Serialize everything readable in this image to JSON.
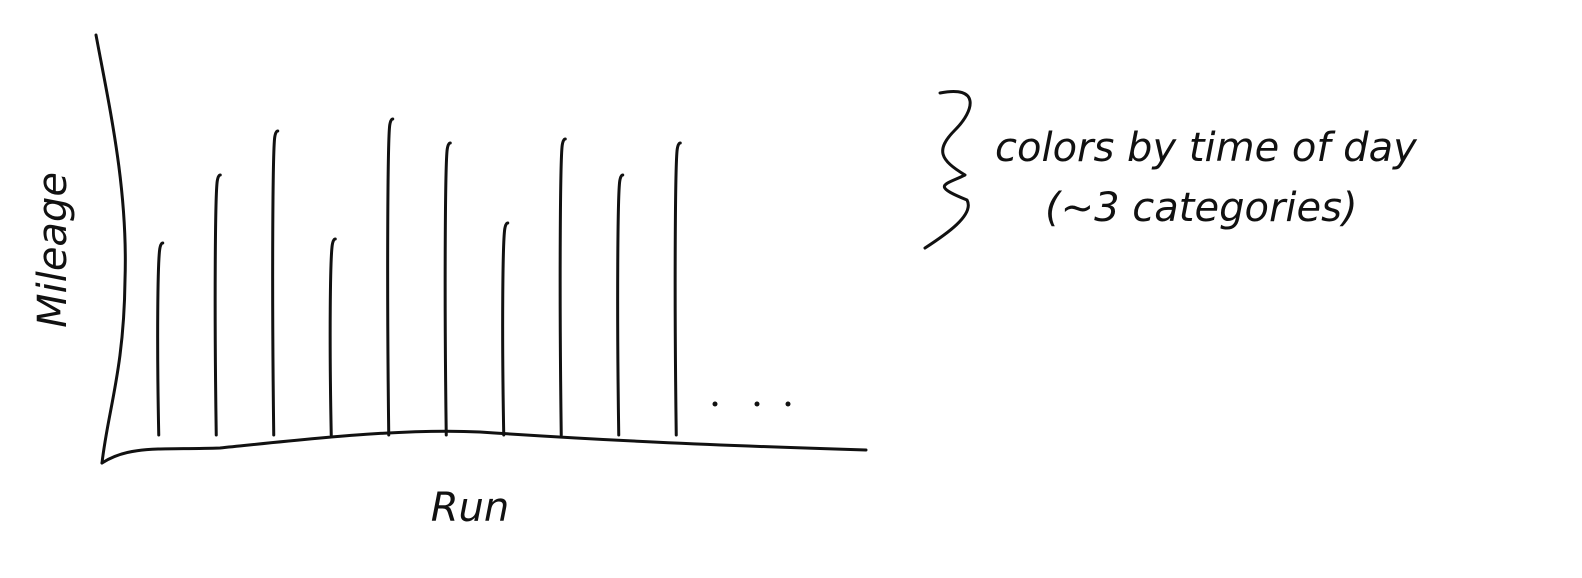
{
  "chart_data": {
    "type": "bar",
    "x_label": "Run",
    "y_label": "Mileage",
    "annotations": [
      "colors by time of day",
      "(~3 categories)"
    ],
    "categories": [
      null,
      null,
      null,
      null,
      null,
      null,
      null,
      null,
      null,
      null
    ],
    "values": [
      4.8,
      6.5,
      7.6,
      4.9,
      7.9,
      7.3,
      5.3,
      7.4,
      6.5,
      7.3
    ],
    "color": "#111111",
    "ylim": [
      0,
      10
    ]
  }
}
